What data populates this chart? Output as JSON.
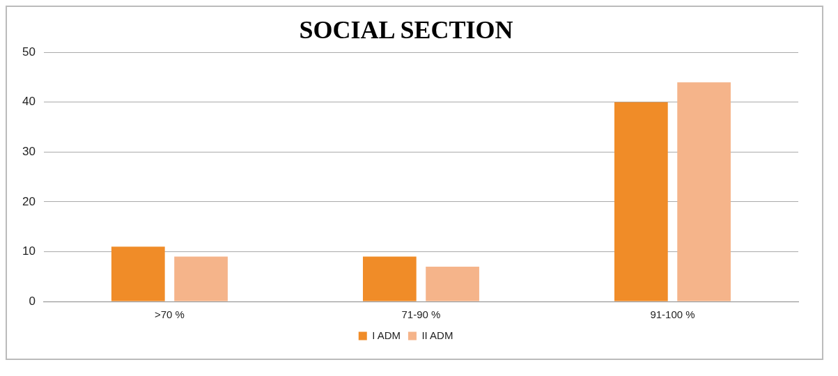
{
  "chart_data": {
    "type": "bar",
    "title": "SOCIAL SECTION",
    "categories": [
      ">70 %",
      "71-90 %",
      "91-100 %"
    ],
    "series": [
      {
        "name": "I ADM",
        "color": "#f08c28",
        "values": [
          11,
          9,
          40
        ]
      },
      {
        "name": "II ADM",
        "color": "#f5b48a",
        "values": [
          9,
          7,
          44
        ]
      }
    ],
    "ylim": [
      0,
      50
    ],
    "yticks": [
      0,
      10,
      20,
      30,
      40,
      50
    ],
    "grid": "y",
    "legend": "bottom"
  }
}
